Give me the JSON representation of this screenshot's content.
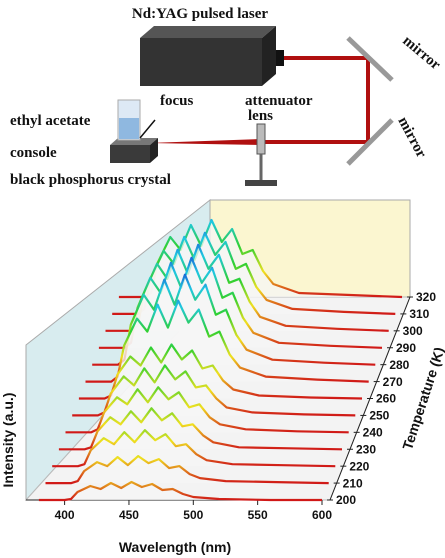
{
  "diagram": {
    "laser": "Nd:YAG pulsed laser",
    "attenuator": "attenuator",
    "mirror_top": "mirror",
    "mirror_bottom": "mirror",
    "lens": "lens",
    "focus": "focus",
    "solvent": "ethyl acetate",
    "console": "console",
    "crystal": "black phosphorus crystal"
  },
  "chart_data": {
    "type": "waterfall",
    "x_label": "Wavelength (nm)",
    "y_label": "Intensity (a.u.)",
    "z_label": "Temperature (K)",
    "x": [
      380,
      400,
      405,
      410,
      420,
      428,
      436,
      444,
      452,
      460,
      468,
      476,
      484,
      492,
      500,
      520,
      560,
      600
    ],
    "xlim": [
      370,
      600
    ],
    "xticks": [
      400,
      450,
      500,
      550,
      600
    ],
    "ylim": [
      0,
      1
    ],
    "z": [
      200,
      210,
      220,
      230,
      240,
      250,
      260,
      270,
      280,
      290,
      300,
      310,
      320
    ],
    "zlim": [
      200,
      320
    ],
    "zticks": [
      200,
      210,
      220,
      230,
      240,
      250,
      260,
      270,
      280,
      290,
      300,
      310,
      320
    ],
    "colormap": [
      "#d01818",
      "#f0e020",
      "#30d030",
      "#20c8e0",
      "#1830d0"
    ],
    "series": [
      {
        "values": [
          0,
          0,
          0.01,
          0.08,
          0.14,
          0.11,
          0.17,
          0.12,
          0.18,
          0.13,
          0.16,
          0.1,
          0.11,
          0.06,
          0.03,
          0.01,
          0,
          0
        ]
      },
      {
        "values": [
          0,
          0,
          0.02,
          0.12,
          0.21,
          0.17,
          0.26,
          0.18,
          0.27,
          0.2,
          0.24,
          0.15,
          0.17,
          0.09,
          0.05,
          0.02,
          0.01,
          0
        ]
      },
      {
        "values": [
          0,
          0,
          0.02,
          0.16,
          0.28,
          0.22,
          0.34,
          0.24,
          0.36,
          0.26,
          0.32,
          0.2,
          0.22,
          0.12,
          0.06,
          0.02,
          0.01,
          0
        ]
      },
      {
        "values": [
          0,
          0,
          0.02,
          0.18,
          0.32,
          0.25,
          0.38,
          0.27,
          0.41,
          0.29,
          0.36,
          0.23,
          0.25,
          0.14,
          0.07,
          0.02,
          0.01,
          0
        ]
      },
      {
        "values": [
          0,
          0,
          0.03,
          0.2,
          0.35,
          0.28,
          0.43,
          0.3,
          0.45,
          0.33,
          0.4,
          0.25,
          0.28,
          0.15,
          0.08,
          0.03,
          0.01,
          0
        ]
      },
      {
        "values": [
          0,
          0,
          0.03,
          0.22,
          0.39,
          0.3,
          0.47,
          0.33,
          0.5,
          0.36,
          0.44,
          0.28,
          0.3,
          0.17,
          0.08,
          0.03,
          0.01,
          0
        ]
      },
      {
        "values": [
          0,
          0,
          0.03,
          0.24,
          0.42,
          0.33,
          0.51,
          0.36,
          0.54,
          0.39,
          0.48,
          0.3,
          0.33,
          0.18,
          0.09,
          0.03,
          0.01,
          0
        ]
      },
      {
        "values": [
          0,
          0,
          0.05,
          0.36,
          0.63,
          0.5,
          0.77,
          0.54,
          0.81,
          0.59,
          0.72,
          0.45,
          0.5,
          0.27,
          0.14,
          0.05,
          0.02,
          0
        ]
      },
      {
        "values": [
          0,
          0,
          0.05,
          0.4,
          0.7,
          0.55,
          0.85,
          0.6,
          0.9,
          0.65,
          0.8,
          0.5,
          0.55,
          0.3,
          0.15,
          0.05,
          0.02,
          0
        ]
      },
      {
        "values": [
          0,
          0,
          0.05,
          0.4,
          0.7,
          0.55,
          0.85,
          0.6,
          0.9,
          0.65,
          0.8,
          0.5,
          0.55,
          0.3,
          0.15,
          0.05,
          0.02,
          0
        ]
      },
      {
        "values": [
          0,
          0,
          0.05,
          0.38,
          0.67,
          0.52,
          0.81,
          0.57,
          0.86,
          0.62,
          0.76,
          0.48,
          0.52,
          0.29,
          0.14,
          0.05,
          0.02,
          0
        ]
      },
      {
        "values": [
          0,
          0,
          0.05,
          0.36,
          0.63,
          0.5,
          0.77,
          0.54,
          0.81,
          0.59,
          0.72,
          0.45,
          0.5,
          0.27,
          0.14,
          0.05,
          0.02,
          0
        ]
      },
      {
        "values": [
          0,
          0,
          0.04,
          0.34,
          0.6,
          0.47,
          0.72,
          0.51,
          0.77,
          0.55,
          0.68,
          0.43,
          0.47,
          0.26,
          0.13,
          0.04,
          0.02,
          0
        ]
      }
    ]
  }
}
